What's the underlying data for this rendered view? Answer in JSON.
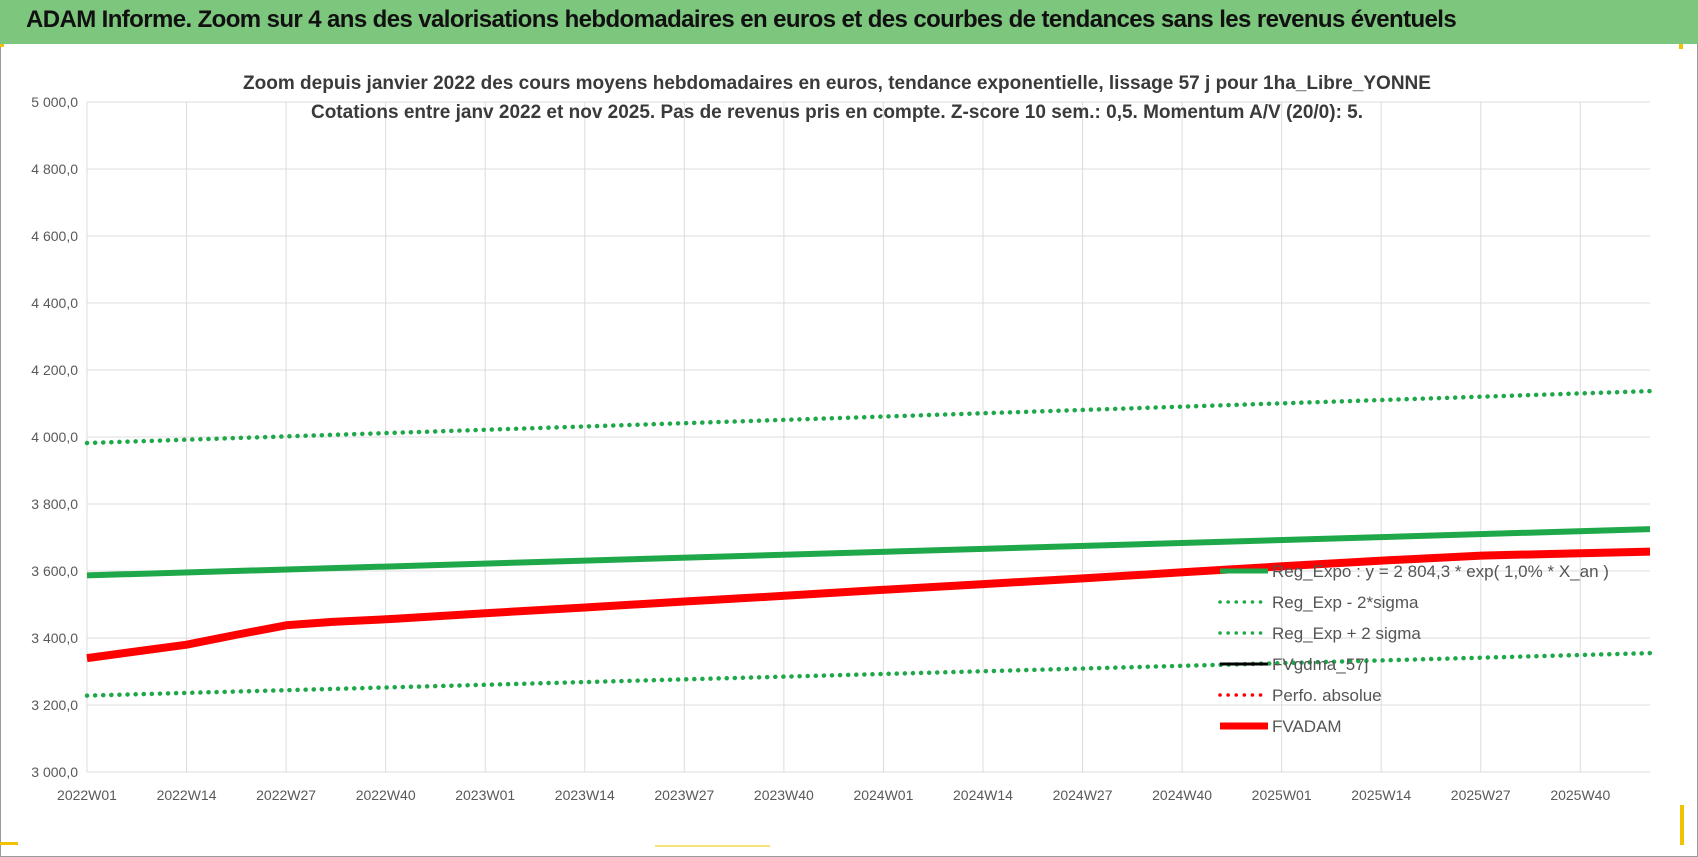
{
  "header": {
    "title": "ADAM Informe. Zoom sur 4 ans des valorisations hebdomadaires en euros et des courbes de tendances sans les revenus éventuels"
  },
  "colors": {
    "banner": "#7dc67d",
    "green": "#1fa84a",
    "red": "#ff0000",
    "black": "#000000",
    "grid": "#dcdcdc"
  },
  "chart_data": {
    "type": "line",
    "title": "Zoom depuis janvier 2022 des cours moyens hebdomadaires en euros, tendance exponentielle, lissage 57 j pour 1ha_Libre_YONNE",
    "subtitle": "Cotations entre janv 2022 et nov 2025. Pas de revenus pris en compte. Z-score 10 sem.: 0,5. Momentum A/V (20/0): 5.",
    "xlabel": "",
    "ylabel": "",
    "x_ticks": [
      "2022W01",
      "2022W14",
      "2022W27",
      "2022W40",
      "2023W01",
      "2023W14",
      "2023W27",
      "2023W40",
      "2024W01",
      "2024W14",
      "2024W27",
      "2024W40",
      "2025W01",
      "2025W14",
      "2025W27",
      "2025W40"
    ],
    "y_ticks": [
      "3 000,0",
      "3 200,0",
      "3 400,0",
      "3 600,0",
      "3 800,0",
      "4 000,0",
      "4 200,0",
      "4 400,0",
      "4 600,0",
      "4 800,0",
      "5 000,0"
    ],
    "ylim": [
      3000,
      5000
    ],
    "grid": true,
    "legend_position": "bottom-right, inside plot",
    "x_index_range": [
      0,
      204
    ],
    "series": [
      {
        "name": "Reg_Expo : y = 2 804,3 * exp( 1,0% * X_an )",
        "style": "solid-thick",
        "color": "#1fa84a",
        "points": [
          [
            0,
            3587
          ],
          [
            204,
            3725
          ]
        ]
      },
      {
        "name": "Reg_Exp - 2*sigma",
        "style": "dotted",
        "color": "#1fa84a",
        "points": [
          [
            0,
            3228
          ],
          [
            204,
            3355
          ]
        ]
      },
      {
        "name": "Reg_Exp + 2 sigma",
        "style": "dotted",
        "color": "#1fa84a",
        "points": [
          [
            0,
            3982
          ],
          [
            204,
            4137
          ]
        ]
      },
      {
        "name": "FVgdma_57j",
        "style": "solid",
        "color": "#000000",
        "points": [
          [
            0,
            3340
          ],
          [
            13,
            3380
          ],
          [
            20,
            3410
          ],
          [
            26,
            3432
          ],
          [
            32,
            3445
          ],
          [
            40,
            3455
          ],
          [
            52,
            3473
          ],
          [
            65,
            3490
          ],
          [
            78,
            3508
          ],
          [
            91,
            3525
          ],
          [
            104,
            3543
          ],
          [
            117,
            3560
          ],
          [
            130,
            3577
          ],
          [
            143,
            3595
          ],
          [
            156,
            3613
          ],
          [
            169,
            3630
          ],
          [
            182,
            3645
          ],
          [
            195,
            3652
          ],
          [
            204,
            3658
          ]
        ]
      },
      {
        "name": "Perfo. absolue",
        "style": "dotted",
        "color": "#ff0000",
        "points": []
      },
      {
        "name": "FVADAM",
        "style": "solid-thick",
        "color": "#ff0000",
        "points": [
          [
            0,
            3340
          ],
          [
            13,
            3380
          ],
          [
            20,
            3412
          ],
          [
            26,
            3438
          ],
          [
            32,
            3448
          ],
          [
            40,
            3457
          ],
          [
            52,
            3474
          ],
          [
            65,
            3491
          ],
          [
            78,
            3509
          ],
          [
            91,
            3526
          ],
          [
            104,
            3544
          ],
          [
            117,
            3561
          ],
          [
            130,
            3578
          ],
          [
            143,
            3596
          ],
          [
            156,
            3614
          ],
          [
            169,
            3631
          ],
          [
            182,
            3646
          ],
          [
            195,
            3653
          ],
          [
            204,
            3658
          ]
        ]
      }
    ]
  }
}
